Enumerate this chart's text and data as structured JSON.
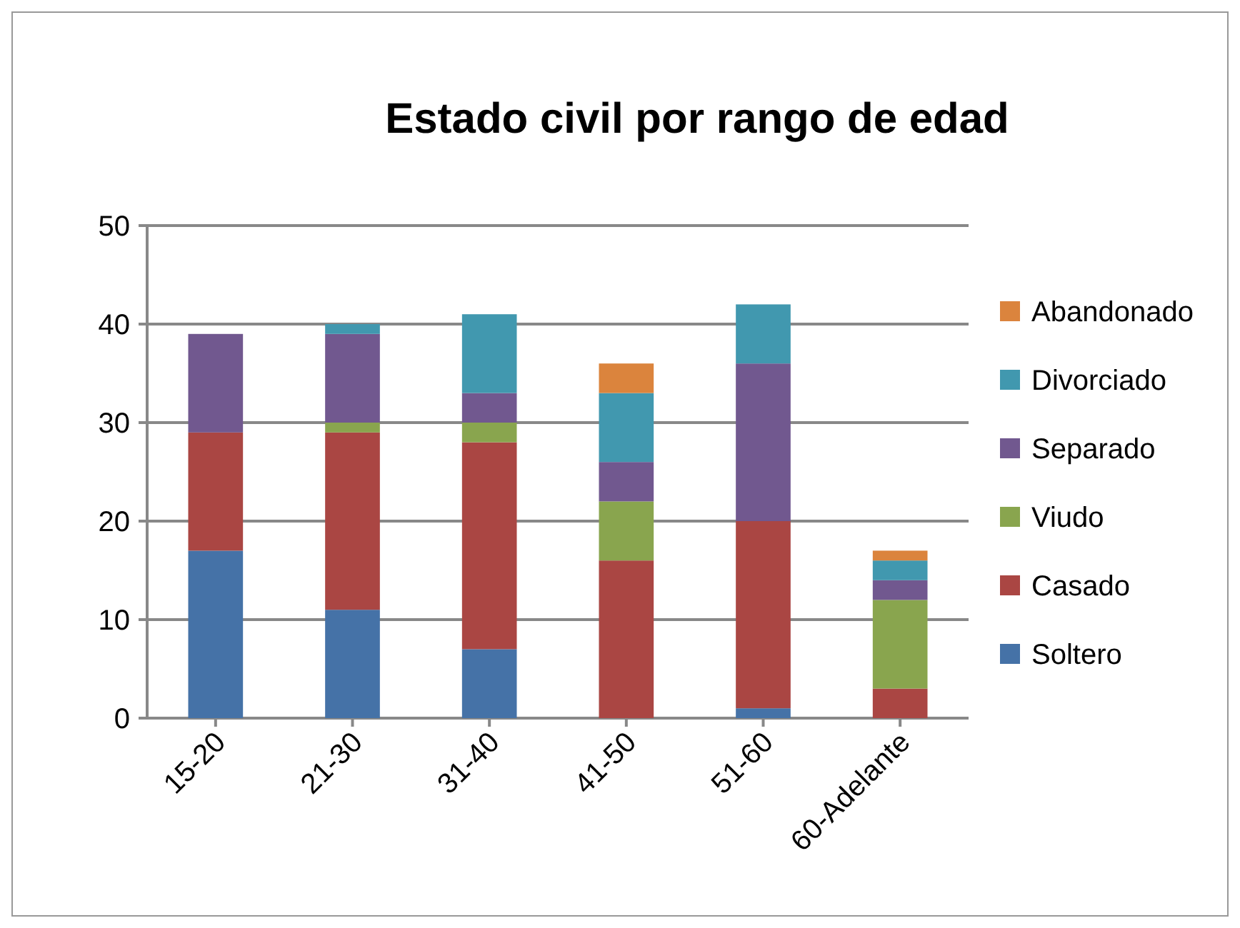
{
  "chart_data": {
    "type": "bar",
    "title": "Estado civil por rango de edad",
    "stacked": true,
    "categories": [
      "15-20",
      "21-30",
      "31-40",
      "41-50",
      "51-60",
      "60-Adelante"
    ],
    "series": [
      {
        "name": "Soltero",
        "color": "#4572a7",
        "values": [
          17,
          11,
          7,
          0,
          1,
          0
        ]
      },
      {
        "name": "Casado",
        "color": "#aa4643",
        "values": [
          12,
          18,
          21,
          16,
          19,
          3
        ]
      },
      {
        "name": "Viudo",
        "color": "#89a54e",
        "values": [
          0,
          1,
          2,
          6,
          0,
          9
        ]
      },
      {
        "name": "Separado",
        "color": "#71588f",
        "values": [
          10,
          9,
          3,
          4,
          16,
          2
        ]
      },
      {
        "name": "Divorciado",
        "color": "#4198af",
        "values": [
          0,
          1,
          8,
          7,
          6,
          2
        ]
      },
      {
        "name": "Abandonado",
        "color": "#db843d",
        "values": [
          0,
          0,
          0,
          3,
          0,
          1
        ]
      }
    ],
    "ylim": [
      0,
      50
    ],
    "yticks": [
      0,
      10,
      20,
      30,
      40,
      50
    ],
    "grid": "y",
    "legend": "right"
  }
}
